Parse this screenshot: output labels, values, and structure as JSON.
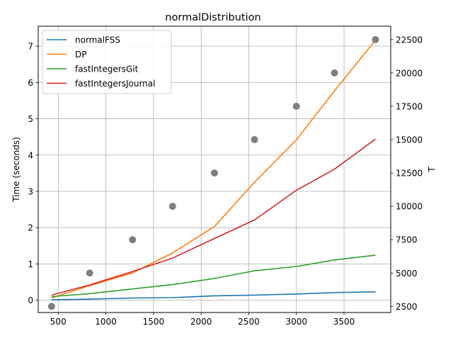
{
  "chart_data": {
    "type": "line",
    "title": "normalDistribution",
    "xlabel": "",
    "ylabel": "Time (seconds)",
    "y2label": "T",
    "xlim": [
      290,
      3990
    ],
    "ylim": [
      -0.34,
      7.55
    ],
    "y2lim": [
      2040,
      23500
    ],
    "xticks": [
      500,
      1000,
      1500,
      2000,
      2500,
      3000,
      3500
    ],
    "yticks": [
      0,
      1,
      2,
      3,
      4,
      5,
      6,
      7
    ],
    "y2ticks": [
      2500,
      5000,
      7500,
      10000,
      12500,
      15000,
      17500,
      20000,
      22500
    ],
    "grid": true,
    "legend_position": "top-left",
    "x": [
      430,
      830,
      1280,
      1700,
      2140,
      2560,
      3000,
      3400,
      3830
    ],
    "series": [
      {
        "name": "normalFSS",
        "color": "#1f77b4",
        "values": [
          0.01,
          0.03,
          0.06,
          0.07,
          0.12,
          0.14,
          0.17,
          0.21,
          0.23
        ]
      },
      {
        "name": "DP",
        "color": "#ff7f0e",
        "values": [
          0.06,
          0.4,
          0.75,
          1.3,
          2.03,
          3.25,
          4.42,
          5.77,
          7.17
        ]
      },
      {
        "name": "fastIntegersGit",
        "color": "#2ca02c",
        "values": [
          0.1,
          0.18,
          0.31,
          0.43,
          0.6,
          0.81,
          0.93,
          1.11,
          1.24
        ]
      },
      {
        "name": "fastIntegersJournal",
        "color": "#d62728",
        "values": [
          0.14,
          0.42,
          0.79,
          1.16,
          1.7,
          2.21,
          3.03,
          3.61,
          4.44
        ]
      }
    ],
    "scatter_secondary": {
      "color": "#7f7f7f",
      "x": [
        430,
        830,
        1280,
        1700,
        2140,
        2560,
        3000,
        3400,
        3830
      ],
      "values": [
        2500,
        5000,
        7500,
        10000,
        12500,
        15000,
        17500,
        20000,
        22500
      ]
    }
  }
}
